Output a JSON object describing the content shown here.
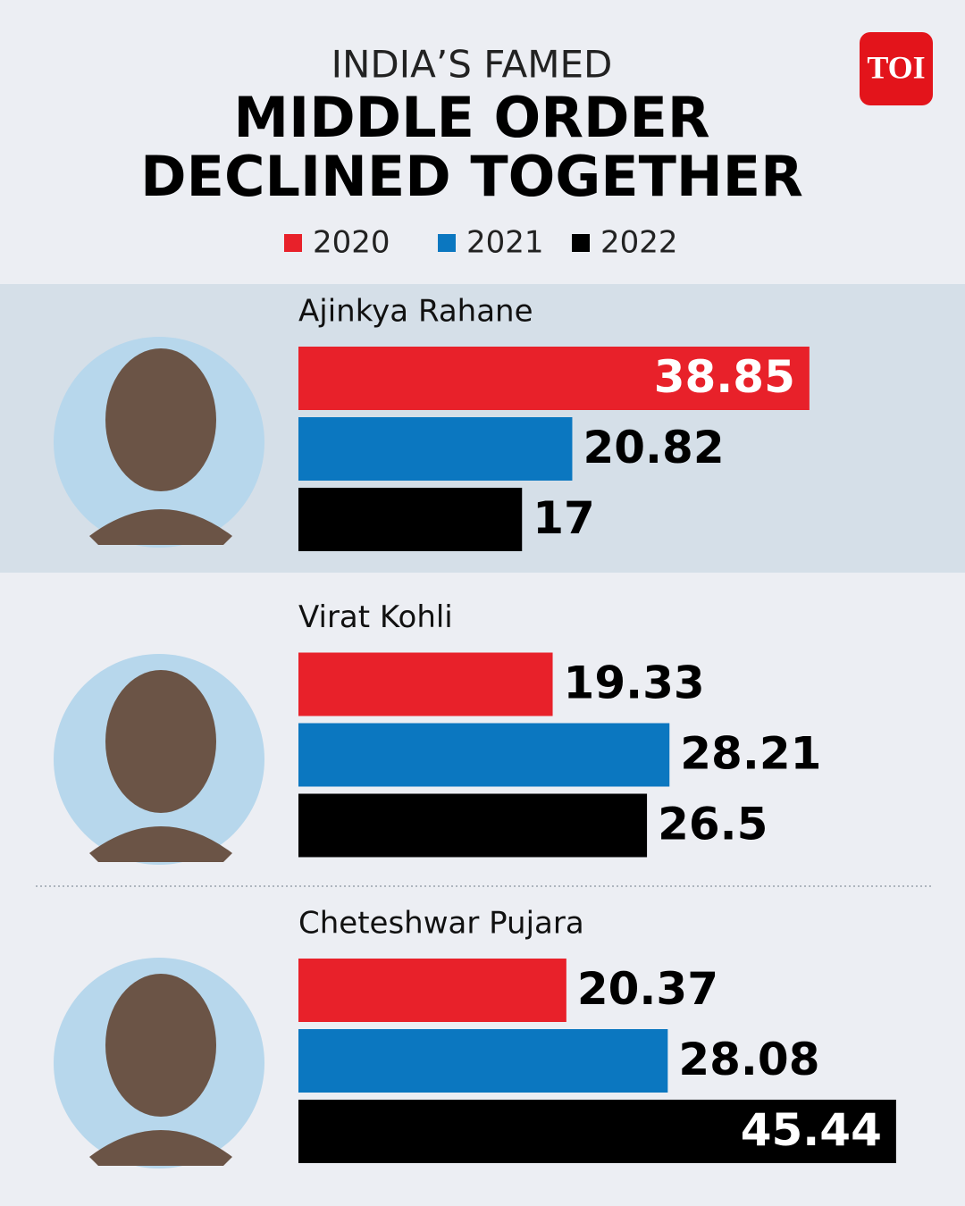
{
  "logo": "TOI",
  "chart_data": {
    "type": "hbar-grouped",
    "kicker": "INDIA’S FAMED",
    "title_lines": [
      "MIDDLE ORDER",
      "DECLINED TOGETHER"
    ],
    "categories": [
      "Ajinkya Rahane",
      "Virat Kohli",
      "Cheteshwar Pujara"
    ],
    "series": [
      {
        "name": "2020",
        "color": "#e8212a",
        "values": [
          38.85,
          19.33,
          20.37
        ]
      },
      {
        "name": "2021",
        "color": "#0b77c0",
        "values": [
          20.82,
          28.21,
          28.08
        ]
      },
      {
        "name": "2022",
        "color": "#000000",
        "values": [
          17,
          26.5,
          45.44
        ]
      }
    ]
  }
}
